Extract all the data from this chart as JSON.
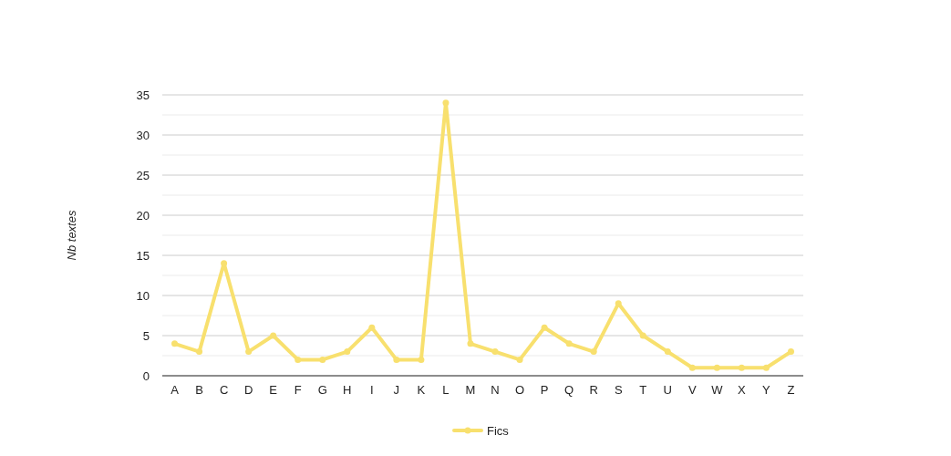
{
  "chart_data": {
    "type": "line",
    "ylabel": "Nb textes",
    "categories": [
      "A",
      "B",
      "C",
      "D",
      "E",
      "F",
      "G",
      "H",
      "I",
      "J",
      "K",
      "L",
      "M",
      "N",
      "O",
      "P",
      "Q",
      "R",
      "S",
      "T",
      "U",
      "V",
      "W",
      "X",
      "Y",
      "Z"
    ],
    "series": [
      {
        "name": "Fics",
        "color": "#f8e06e",
        "values": [
          4,
          3,
          14,
          3,
          5,
          2,
          2,
          3,
          6,
          2,
          2,
          34,
          4,
          3,
          2,
          6,
          4,
          3,
          9,
          5,
          3,
          1,
          1,
          1,
          1,
          3
        ]
      }
    ],
    "ylim": [
      0,
      35
    ],
    "yticks": [
      0,
      {
        "value": 2.5,
        "label": null
      },
      5,
      {
        "value": 7.5,
        "label": null
      },
      10,
      {
        "value": 12.5,
        "label": null
      },
      15,
      {
        "value": 17.5,
        "label": null
      },
      20,
      {
        "value": 22.5,
        "label": null
      },
      25,
      {
        "value": 27.5,
        "label": null
      },
      30,
      {
        "value": 32.5,
        "label": null
      },
      35
    ],
    "grid": "y",
    "legend": "bottom",
    "marker": "circle",
    "line_style": "solid"
  }
}
